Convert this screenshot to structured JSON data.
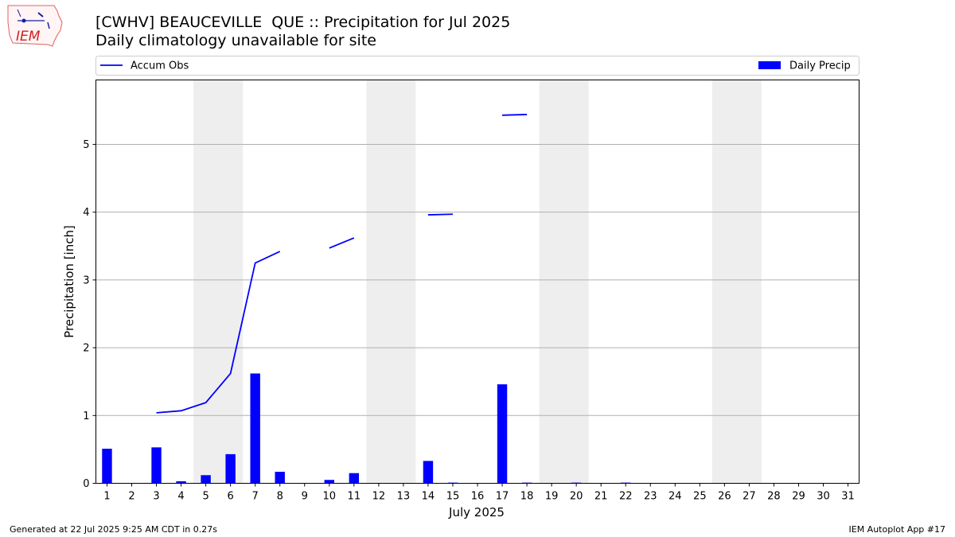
{
  "logo": {
    "text": "IEM",
    "icon": "iem-iowa-logo-icon"
  },
  "footer": {
    "left": "Generated at 22 Jul 2025 9:25 AM CDT in 0.27s",
    "right": "IEM Autoplot App #17"
  },
  "chart_data": {
    "type": "bar",
    "title": "[CWHV] BEAUCEVILLE  QUE :: Precipitation for Jul 2025",
    "subtitle": "Daily climatology unavailable for site",
    "xlabel": "July 2025",
    "ylabel": "Precipitation [inch]",
    "ylim": [
      0,
      5.95
    ],
    "yticks": [
      0,
      1,
      2,
      3,
      4,
      5
    ],
    "grid": "y",
    "legend_placement": "top",
    "categories": [
      "1",
      "2",
      "3",
      "4",
      "5",
      "6",
      "7",
      "8",
      "9",
      "10",
      "11",
      "12",
      "13",
      "14",
      "15",
      "16",
      "17",
      "18",
      "19",
      "20",
      "21",
      "22",
      "23",
      "24",
      "25",
      "26",
      "27",
      "28",
      "29",
      "30",
      "31"
    ],
    "weekend_shading": [
      [
        5,
        6
      ],
      [
        12,
        13
      ],
      [
        19,
        20
      ],
      [
        26,
        27
      ]
    ],
    "series": [
      {
        "name": "Daily Precip",
        "type": "bar",
        "color": "#0000ff",
        "values": [
          0.51,
          null,
          0.53,
          0.03,
          0.12,
          0.43,
          1.62,
          0.17,
          null,
          0.05,
          0.15,
          null,
          null,
          0.33,
          0.01,
          null,
          1.46,
          0.01,
          null,
          0.01,
          null,
          0.01,
          null,
          null,
          null,
          null,
          null,
          null,
          null,
          null,
          null
        ]
      },
      {
        "name": "Accum Obs",
        "type": "line",
        "color": "#0000ff",
        "segments": [
          [
            [
              3,
              1.04
            ],
            [
              4,
              1.07
            ],
            [
              5,
              1.19
            ],
            [
              6,
              1.62
            ],
            [
              7,
              3.25
            ],
            [
              8,
              3.42
            ]
          ],
          [
            [
              10,
              3.47
            ],
            [
              11,
              3.62
            ]
          ],
          [
            [
              14,
              3.96
            ],
            [
              15,
              3.97
            ]
          ],
          [
            [
              17,
              5.43
            ],
            [
              18,
              5.44
            ]
          ]
        ]
      }
    ],
    "shade_color": "#eeeeee",
    "grid_color": "#b0b0b0"
  }
}
